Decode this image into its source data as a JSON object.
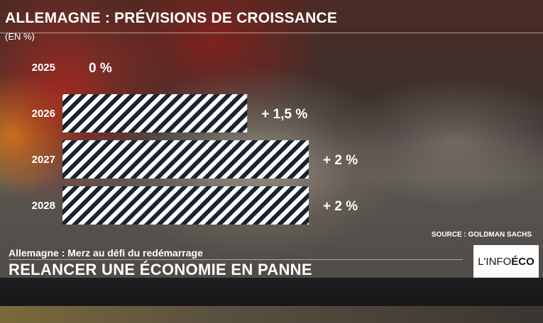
{
  "title": "ALLEMAGNE : PRÉVISIONS DE CROISSANCE",
  "unit": "(EN %)",
  "source": "SOURCE : GOLDMAN SACHS",
  "lower_third": {
    "subtitle": "Allemagne : Merz au défi du redémarrage",
    "headline": "RELANCER UNE ÉCONOMIE EN  PANNE"
  },
  "logo": {
    "part1": "L'INFO ",
    "part2": "ÉCO"
  },
  "colors": {
    "bar_stripe": "#ffffff",
    "bar_stripe_alt": "#1a2430",
    "text": "#ffffff"
  },
  "chart_data": {
    "type": "bar",
    "orientation": "horizontal",
    "title": "ALLEMAGNE : PRÉVISIONS DE CROISSANCE",
    "unit": "(EN %)",
    "categories": [
      "2025",
      "2026",
      "2027",
      "2028"
    ],
    "values": [
      0,
      1.5,
      2,
      2
    ],
    "data_labels": [
      "0 %",
      "+ 1,5 %",
      "+ 2 %",
      "+ 2 %"
    ],
    "xlim": [
      0,
      2
    ],
    "grid": false,
    "legend": "none"
  }
}
